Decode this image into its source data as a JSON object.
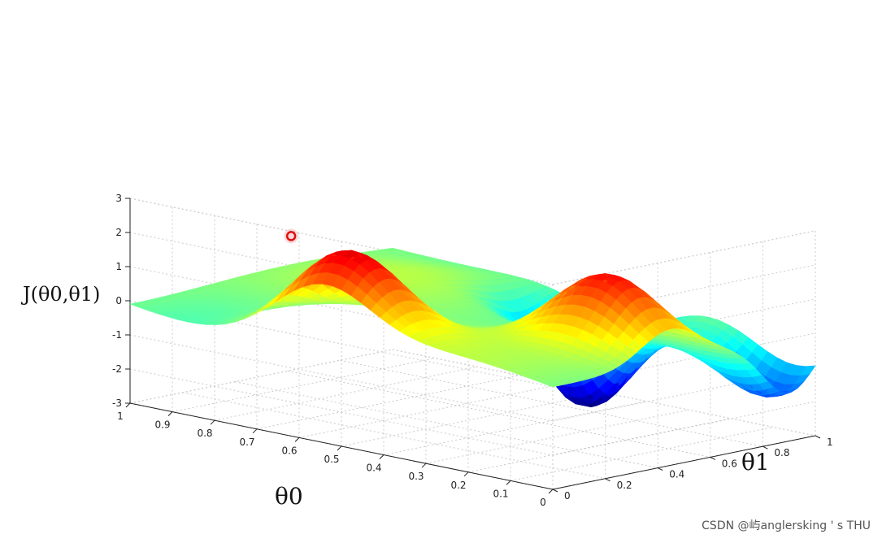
{
  "chart_data": {
    "type": "surface",
    "title": "",
    "xlabel": "θ0",
    "ylabel": "θ1",
    "zlabel": "J(θ0,θ1)",
    "x_ticks": [
      "1",
      "0.9",
      "0.8",
      "0.7",
      "0.6",
      "0.5",
      "0.4",
      "0.3",
      "0.2",
      "0.1",
      "0"
    ],
    "y_ticks": [
      "0",
      "0.2",
      "0.4",
      "0.6",
      "0.8",
      "1"
    ],
    "z_ticks": [
      "3",
      "2",
      "1",
      "0",
      "-1",
      "-2",
      "-3"
    ],
    "xlim": [
      0,
      1
    ],
    "ylim": [
      0,
      1
    ],
    "zlim": [
      -3,
      3
    ],
    "grid": true,
    "colormap": "jet",
    "surface_features": [
      {
        "kind": "peak",
        "theta0": 0.55,
        "theta1": 0.1,
        "J": 2.5
      },
      {
        "kind": "peak",
        "theta0": 0.15,
        "theta1": 0.45,
        "J": 2.4
      },
      {
        "kind": "valley",
        "theta0": 0.45,
        "theta1": 0.85,
        "J": -3.0
      },
      {
        "kind": "valley",
        "theta0": 0.05,
        "theta1": 0.9,
        "J": -1.8
      }
    ],
    "marker": {
      "theta0": 0.65,
      "theta1": 0.05,
      "J": 2.7,
      "color": "#e01010"
    }
  },
  "watermark": "CSDN @屿anglersking ' s THU"
}
